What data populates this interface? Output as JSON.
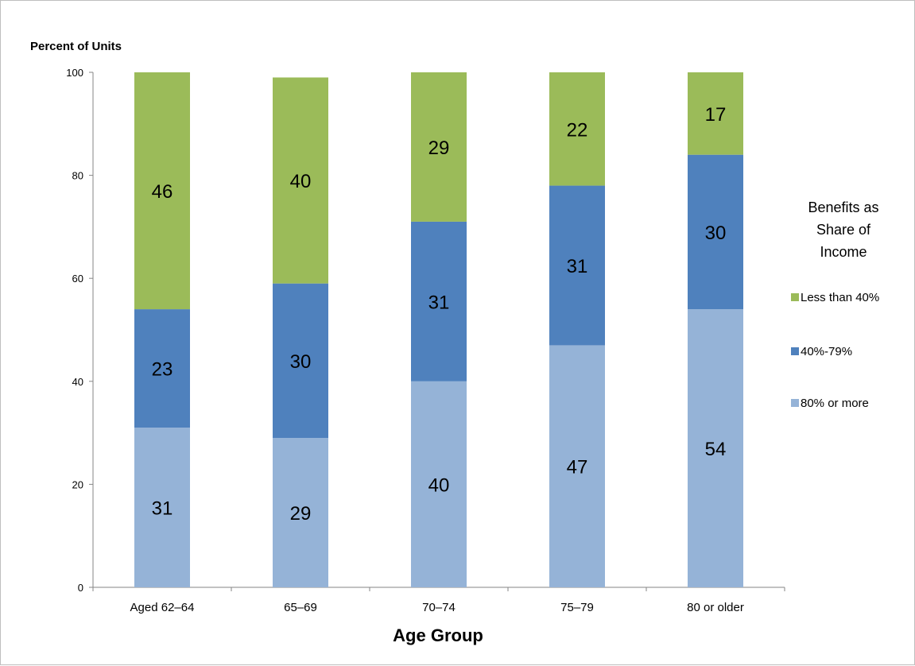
{
  "chart_data": {
    "type": "bar",
    "stacked": true,
    "categories": [
      "Aged 62–64",
      "65–69",
      "70–74",
      "75–79",
      "80 or older"
    ],
    "series": [
      {
        "name": "80% or more",
        "values": [
          31,
          29,
          40,
          47,
          54
        ],
        "color": "#95b3d7"
      },
      {
        "name": "40%-79%",
        "values": [
          23,
          30,
          31,
          31,
          30
        ],
        "color": "#4f81bd"
      },
      {
        "name": "Less than 40%",
        "values": [
          46,
          40,
          29,
          22,
          17
        ],
        "color": "#9bbb59"
      }
    ],
    "title": "",
    "xlabel": "Age Group",
    "ylabel": "Percent of Units",
    "ylim": [
      0,
      100
    ],
    "yticks": [
      "0",
      "20",
      "40",
      "60",
      "80",
      "100"
    ],
    "grid": false,
    "legend": {
      "title_lines": [
        "Benefits as",
        "Share of",
        "Income"
      ],
      "entries": [
        "Less than 40%",
        "40%-79%",
        "80% or more"
      ],
      "placement": "right"
    }
  }
}
